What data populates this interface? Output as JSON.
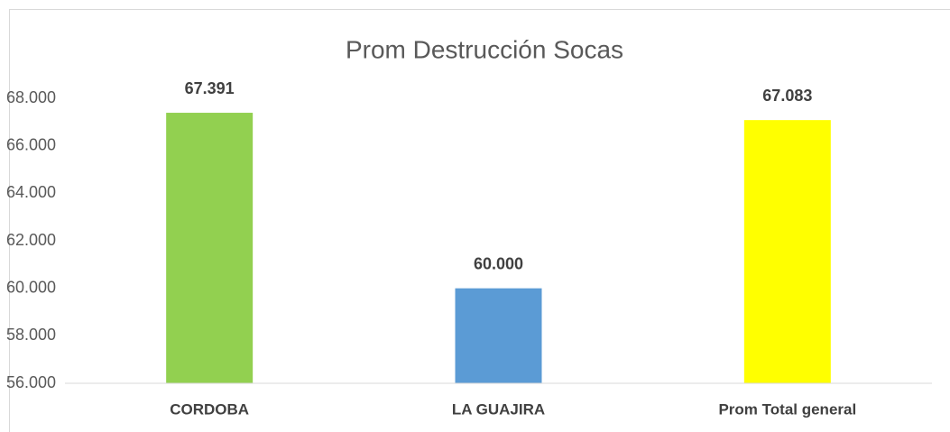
{
  "chart_data": {
    "type": "bar",
    "title": "Prom Destrucción Socas",
    "categories": [
      "CORDOBA",
      "LA GUAJIRA",
      "Prom Total general"
    ],
    "values": [
      67.391,
      60,
      67.083
    ],
    "value_labels": [
      "67.391",
      "60.000",
      "67.083"
    ],
    "colors": [
      "#92d050",
      "#5b9bd5",
      "#ffff00"
    ],
    "ylim": [
      56,
      68
    ],
    "yticks": [
      {
        "value": 56,
        "label": "56.000"
      },
      {
        "value": 58,
        "label": "58.000"
      },
      {
        "value": 60,
        "label": "60.000"
      },
      {
        "value": 62,
        "label": "62.000"
      },
      {
        "value": 64,
        "label": "64.000"
      },
      {
        "value": 66,
        "label": "66.000"
      },
      {
        "value": 68,
        "label": "68.000"
      }
    ],
    "grid": false
  }
}
